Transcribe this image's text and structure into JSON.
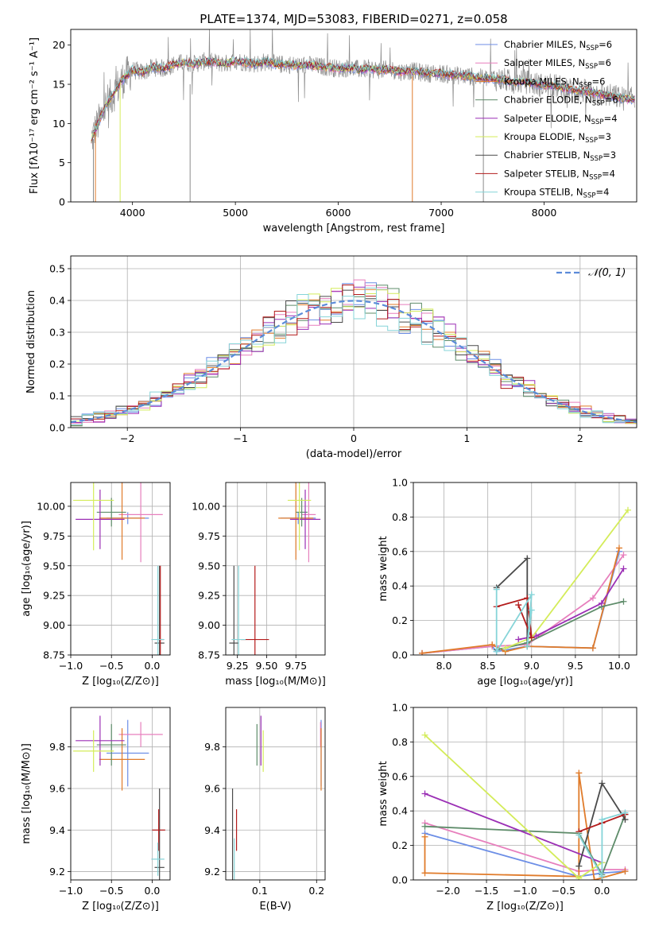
{
  "colors": {
    "Chabrier MILES": "#6c8ee6",
    "Salpeter MILES": "#e77fbd",
    "Kroupa MILES": "#e07b2a",
    "Chabrier ELODIE": "#5e8c6a",
    "Salpeter ELODIE": "#9b2fb5",
    "Kroupa ELODIE": "#d4ec5a",
    "Chabrier STELIB": "#4a4a4a",
    "Salpeter STELIB": "#b31b1b",
    "Kroupa STELIB": "#86d4d8",
    "data": "#8c8c8c",
    "normal": "#5b8bd9"
  },
  "chart_data": [
    {
      "id": "spectrum",
      "type": "line",
      "title": "PLATE=1374, MJD=53083, FIBERID=0271, z=0.058",
      "xlabel": "wavelength [Angstrom, rest frame]",
      "ylabel": "Flux [fλ10⁻¹⁷ erg cm⁻² s⁻¹ A⁻¹]",
      "xlim": [
        3400,
        8900
      ],
      "ylim": [
        0,
        22
      ],
      "xticks": [
        "4000",
        "5000",
        "6000",
        "7000",
        "8000"
      ],
      "yticks": [
        "0",
        "5",
        "10",
        "15",
        "20"
      ],
      "grid": false,
      "legend_position": "top-right",
      "continuum": {
        "x": [
          3600,
          3650,
          3700,
          3750,
          3800,
          3850,
          3900,
          3950,
          4000,
          4100,
          4200,
          4300,
          4400,
          4500,
          4600,
          4700,
          4800,
          4900,
          5000,
          5100,
          5200,
          5300,
          5400,
          5500,
          5600,
          5700,
          5800,
          5900,
          6000,
          6100,
          6200,
          6300,
          6400,
          6500,
          6600,
          6700,
          6800,
          6900,
          7000,
          7100,
          7200,
          7300,
          7400,
          7500,
          7600,
          7700,
          7800,
          7900,
          8000,
          8100,
          8200,
          8300,
          8400,
          8500,
          8600,
          8700,
          8800
        ],
        "y": [
          8.0,
          9.5,
          11.0,
          12.5,
          13.5,
          14.5,
          15.5,
          16.2,
          16.8,
          16.5,
          17.2,
          17.0,
          17.5,
          17.8,
          17.6,
          17.9,
          17.8,
          17.6,
          18.0,
          17.8,
          17.6,
          17.9,
          17.5,
          17.6,
          17.4,
          17.5,
          17.3,
          17.2,
          17.0,
          17.1,
          16.9,
          17.0,
          16.8,
          16.9,
          16.6,
          16.7,
          16.5,
          16.4,
          16.4,
          16.2,
          16.1,
          16.0,
          15.8,
          15.7,
          15.6,
          15.2,
          15.4,
          15.1,
          14.8,
          14.8,
          14.5,
          14.2,
          14.1,
          13.9,
          13.6,
          13.4,
          13.1
        ]
      },
      "series": [
        {
          "name": "Chabrier MILES, N_SSP=6",
          "nssp": "6"
        },
        {
          "name": "Salpeter MILES, N_SSP=6",
          "nssp": "6"
        },
        {
          "name": "Kroupa MILES, N_SSP=6",
          "nssp": "6"
        },
        {
          "name": "Chabrier ELODIE, N_SSP=6",
          "nssp": "6"
        },
        {
          "name": "Salpeter ELODIE, N_SSP=4",
          "nssp": "4"
        },
        {
          "name": "Kroupa ELODIE, N_SSP=3",
          "nssp": "3"
        },
        {
          "name": "Chabrier STELIB, N_SSP=3",
          "nssp": "3"
        },
        {
          "name": "Salpeter STELIB, N_SSP=4",
          "nssp": "4"
        },
        {
          "name": "Kroupa STELIB, N_SSP=4",
          "nssp": "4"
        }
      ],
      "legend_labels": [
        {
          "model": "Chabrier MILES, N",
          "sub": "SSP",
          "tail": "=6"
        },
        {
          "model": "Salpeter MILES, N",
          "sub": "SSP",
          "tail": "=6"
        },
        {
          "model": "Kroupa MILES, N",
          "sub": "SSP",
          "tail": "=6"
        },
        {
          "model": "Chabrier ELODIE, N",
          "sub": "SSP",
          "tail": "=6"
        },
        {
          "model": "Salpeter ELODIE, N",
          "sub": "SSP",
          "tail": "=4"
        },
        {
          "model": "Kroupa ELODIE, N",
          "sub": "SSP",
          "tail": "=3"
        },
        {
          "model": "Chabrier STELIB, N",
          "sub": "SSP",
          "tail": "=3"
        },
        {
          "model": "Salpeter STELIB, N",
          "sub": "SSP",
          "tail": "=4"
        },
        {
          "model": "Kroupa STELIB, N",
          "sub": "SSP",
          "tail": "=4"
        }
      ]
    },
    {
      "id": "residuals",
      "type": "line",
      "xlabel": "(data-model)/error",
      "ylabel": "Normed distribution",
      "xlim": [
        -2.5,
        2.5
      ],
      "ylim": [
        0,
        0.54
      ],
      "xticks": [
        "−2",
        "−1",
        "0",
        "1",
        "2"
      ],
      "yticks": [
        "0.0",
        "0.1",
        "0.2",
        "0.3",
        "0.4",
        "0.5"
      ],
      "grid": true,
      "legend_position": "top-right",
      "legend_label": "𝒩(0, 1)",
      "bin_width": 0.1,
      "bin_start": -2.5
    },
    {
      "id": "age-vs-Z",
      "type": "scatter",
      "xlabel": "Z [log₁₀(Z/Z⊙)]",
      "ylabel": "age  [log₁₀(age/yr)]",
      "xlim": [
        -1.0,
        0.22
      ],
      "ylim": [
        8.75,
        10.2
      ],
      "xticks": [
        "−1.0",
        "−0.5",
        "0.0"
      ],
      "yticks": [
        "8.75",
        "9.00",
        "9.25",
        "9.50",
        "9.75",
        "10.00"
      ],
      "grid": true,
      "points": [
        {
          "m": "Chabrier MILES",
          "x": -0.3,
          "xerr": 0.26,
          "y": 9.9,
          "yerr": 0.05
        },
        {
          "m": "Salpeter MILES",
          "x": -0.14,
          "xerr": 0.27,
          "y": 9.93,
          "yerr": 0.4
        },
        {
          "m": "Kroupa MILES",
          "x": -0.37,
          "xerr": 0.28,
          "y": 9.9,
          "yerr": 0.35
        },
        {
          "m": "Chabrier ELODIE",
          "x": -0.5,
          "xerr": 0.18,
          "y": 9.95,
          "yerr": 0.12
        },
        {
          "m": "Salpeter ELODIE",
          "x": -0.64,
          "xerr": 0.3,
          "y": 9.89,
          "yerr": 0.25
        },
        {
          "m": "Kroupa ELODIE",
          "x": -0.72,
          "xerr": 0.25,
          "y": 10.05,
          "yerr": 0.42
        },
        {
          "m": "Chabrier STELIB",
          "x": 0.09,
          "xerr": 0.06,
          "y": 8.85,
          "yerr": 0.65
        },
        {
          "m": "Salpeter STELIB",
          "x": 0.1,
          "xerr": 0.04,
          "y": 8.88,
          "yerr": 0.62
        },
        {
          "m": "Kroupa STELIB",
          "x": 0.07,
          "xerr": 0.08,
          "y": 8.88,
          "yerr": 0.62
        }
      ]
    },
    {
      "id": "age-vs-mass",
      "type": "scatter",
      "xlabel": "mass [log₁₀(M/M⊙)]",
      "xlim": [
        9.15,
        10.0
      ],
      "ylim": [
        8.75,
        10.2
      ],
      "xticks": [
        "9.25",
        "9.50",
        "9.75"
      ],
      "yticks": [
        "8.75",
        "9.00",
        "9.25",
        "9.50",
        "9.75",
        "10.00"
      ],
      "grid": true,
      "points": [
        {
          "m": "Chabrier MILES",
          "x": 9.77,
          "xerr": 0.15,
          "y": 9.9,
          "yerr": 0.05
        },
        {
          "m": "Salpeter MILES",
          "x": 9.86,
          "xerr": 0.06,
          "y": 9.93,
          "yerr": 0.4
        },
        {
          "m": "Kroupa MILES",
          "x": 9.75,
          "xerr": 0.15,
          "y": 9.9,
          "yerr": 0.35
        },
        {
          "m": "Chabrier ELODIE",
          "x": 9.8,
          "xerr": 0.05,
          "y": 9.95,
          "yerr": 0.12
        },
        {
          "m": "Salpeter ELODIE",
          "x": 9.83,
          "xerr": 0.13,
          "y": 9.89,
          "yerr": 0.25
        },
        {
          "m": "Kroupa ELODIE",
          "x": 9.78,
          "xerr": 0.1,
          "y": 10.05,
          "yerr": 0.42
        },
        {
          "m": "Chabrier STELIB",
          "x": 9.22,
          "xerr": 0.04,
          "y": 8.85,
          "yerr": 0.65
        },
        {
          "m": "Salpeter STELIB",
          "x": 9.4,
          "xerr": 0.12,
          "y": 8.88,
          "yerr": 0.62
        },
        {
          "m": "Kroupa STELIB",
          "x": 9.26,
          "xerr": 0.06,
          "y": 8.88,
          "yerr": 0.62
        }
      ]
    },
    {
      "id": "mass-weight-vs-age",
      "type": "line",
      "xlabel": "age  [log₁₀(age/yr)]",
      "ylabel": "mass weight",
      "xlim": [
        7.65,
        10.2
      ],
      "ylim": [
        0,
        1.0
      ],
      "xticks": [
        "8.0",
        "8.5",
        "9.0",
        "9.5",
        "10.0"
      ],
      "yticks": [
        "0.0",
        "0.2",
        "0.4",
        "0.6",
        "0.8",
        "1.0"
      ],
      "grid": true,
      "series": [
        {
          "m": "Chabrier MILES",
          "points": [
            [
              7.75,
              0.01
            ],
            [
              8.55,
              0.05
            ],
            [
              8.6,
              0.02
            ],
            [
              8.95,
              0.05
            ],
            [
              9.7,
              0.04
            ],
            [
              10.0,
              0.6
            ]
          ]
        },
        {
          "m": "Salpeter MILES",
          "points": [
            [
              7.75,
              0.01
            ],
            [
              8.55,
              0.05
            ],
            [
              8.95,
              0.06
            ],
            [
              9.7,
              0.33
            ],
            [
              10.05,
              0.58
            ]
          ]
        },
        {
          "m": "Kroupa MILES",
          "points": [
            [
              7.75,
              0.01
            ],
            [
              8.55,
              0.06
            ],
            [
              8.7,
              0.02
            ],
            [
              8.95,
              0.05
            ],
            [
              9.7,
              0.04
            ],
            [
              10.0,
              0.62
            ]
          ]
        },
        {
          "m": "Chabrier ELODIE",
          "points": [
            [
              8.6,
              0.03
            ],
            [
              8.95,
              0.07
            ],
            [
              9.8,
              0.28
            ],
            [
              10.05,
              0.31
            ]
          ]
        },
        {
          "m": "Salpeter ELODIE",
          "points": [
            [
              8.85,
              0.09
            ],
            [
              9.05,
              0.11
            ],
            [
              9.8,
              0.3
            ],
            [
              10.05,
              0.5
            ]
          ]
        },
        {
          "m": "Kroupa ELODIE",
          "points": [
            [
              8.7,
              0.04
            ],
            [
              9.0,
              0.1
            ],
            [
              10.1,
              0.84
            ]
          ]
        },
        {
          "m": "Chabrier STELIB",
          "points": [
            [
              8.6,
              0.39
            ],
            [
              8.95,
              0.56
            ],
            [
              8.95,
              0.05
            ]
          ]
        },
        {
          "m": "Salpeter STELIB",
          "points": [
            [
              8.6,
              0.28
            ],
            [
              8.95,
              0.33
            ],
            [
              9.0,
              0.1
            ],
            [
              8.85,
              0.29
            ]
          ]
        },
        {
          "m": "Kroupa STELIB",
          "points": [
            [
              8.6,
              0.38
            ],
            [
              8.6,
              0.02
            ],
            [
              9.0,
              0.35
            ],
            [
              8.95,
              0.05
            ],
            [
              9.0,
              0.26
            ]
          ]
        }
      ]
    },
    {
      "id": "mass-vs-Z",
      "type": "scatter",
      "xlabel": "Z [log₁₀(Z/Z⊙)]",
      "ylabel": "mass [log₁₀(M/M⊙)]",
      "xlim": [
        -1.0,
        0.22
      ],
      "ylim": [
        9.16,
        9.99
      ],
      "xticks": [
        "−1.0",
        "−0.5",
        "0.0"
      ],
      "yticks": [
        "9.2",
        "9.4",
        "9.6",
        "9.8"
      ],
      "grid": true,
      "points": [
        {
          "m": "Chabrier MILES",
          "x": -0.3,
          "xerr": 0.26,
          "y": 9.77,
          "yerr": 0.16
        },
        {
          "m": "Salpeter MILES",
          "x": -0.14,
          "xerr": 0.27,
          "y": 9.86,
          "yerr": 0.06
        },
        {
          "m": "Kroupa MILES",
          "x": -0.37,
          "xerr": 0.28,
          "y": 9.74,
          "yerr": 0.15
        },
        {
          "m": "Chabrier ELODIE",
          "x": -0.5,
          "xerr": 0.18,
          "y": 9.81,
          "yerr": 0.1
        },
        {
          "m": "Salpeter ELODIE",
          "x": -0.64,
          "xerr": 0.3,
          "y": 9.83,
          "yerr": 0.12
        },
        {
          "m": "Kroupa ELODIE",
          "x": -0.72,
          "xerr": 0.25,
          "y": 9.78,
          "yerr": 0.1
        },
        {
          "m": "Chabrier STELIB",
          "x": 0.09,
          "xerr": 0.06,
          "y": 9.22,
          "yerr": 0.38
        },
        {
          "m": "Salpeter STELIB",
          "x": 0.08,
          "xerr": 0.08,
          "y": 9.4,
          "yerr": 0.1
        },
        {
          "m": "Kroupa STELIB",
          "x": 0.07,
          "xerr": 0.08,
          "y": 9.26,
          "yerr": 0.08
        }
      ]
    },
    {
      "id": "mass-vs-EBV",
      "type": "scatter",
      "xlabel": "E(B-V)",
      "xlim": [
        0.04,
        0.215
      ],
      "ylim": [
        9.16,
        9.99
      ],
      "xticks": [
        "0.1",
        "0.2"
      ],
      "yticks": [
        "9.2",
        "9.4",
        "9.6",
        "9.8"
      ],
      "grid": true,
      "points": [
        {
          "m": "Chabrier MILES",
          "x": 0.208,
          "y": 9.77,
          "yerr": 0.16
        },
        {
          "m": "Salpeter MILES",
          "x": 0.207,
          "y": 9.86,
          "yerr": 0.06
        },
        {
          "m": "Kroupa MILES",
          "x": 0.208,
          "y": 9.74,
          "yerr": 0.15
        },
        {
          "m": "Chabrier ELODIE",
          "x": 0.095,
          "y": 9.81,
          "yerr": 0.1
        },
        {
          "m": "Salpeter ELODIE",
          "x": 0.102,
          "y": 9.83,
          "yerr": 0.12
        },
        {
          "m": "Kroupa ELODIE",
          "x": 0.106,
          "y": 9.78,
          "yerr": 0.1
        },
        {
          "m": "Chabrier STELIB",
          "x": 0.052,
          "y": 9.22,
          "yerr": 0.38
        },
        {
          "m": "Salpeter STELIB",
          "x": 0.059,
          "y": 9.4,
          "yerr": 0.1
        },
        {
          "m": "Kroupa STELIB",
          "x": 0.055,
          "y": 9.26,
          "yerr": 0.1
        }
      ]
    },
    {
      "id": "mass-weight-vs-Z",
      "type": "line",
      "xlabel": "Z [log₁₀(Z/Z⊙)]",
      "ylabel": "mass weight",
      "xlim": [
        -2.45,
        0.45
      ],
      "ylim": [
        0,
        1.0
      ],
      "xticks": [
        "−2.0",
        "−1.5",
        "−1.0",
        "−0.5",
        "0.0"
      ],
      "yticks": [
        "0.0",
        "0.2",
        "0.4",
        "0.6",
        "0.8",
        "1.0"
      ],
      "grid": true,
      "series": [
        {
          "m": "Chabrier MILES",
          "points": [
            [
              -2.3,
              0.27
            ],
            [
              -0.3,
              0.02
            ],
            [
              0.0,
              0.04
            ],
            [
              0.3,
              0.05
            ]
          ]
        },
        {
          "m": "Salpeter MILES",
          "points": [
            [
              -2.3,
              0.33
            ],
            [
              -0.3,
              0.05
            ],
            [
              0.0,
              0.06
            ],
            [
              0.3,
              0.06
            ]
          ]
        },
        {
          "m": "Kroupa MILES",
          "points": [
            [
              -2.3,
              0.25
            ],
            [
              -2.3,
              0.04
            ],
            [
              -0.3,
              0.02
            ],
            [
              -0.3,
              0.62
            ],
            [
              -0.1,
              0.0
            ],
            [
              0.3,
              0.05
            ]
          ]
        },
        {
          "m": "Chabrier ELODIE",
          "points": [
            [
              -2.3,
              0.31
            ],
            [
              -0.3,
              0.27
            ],
            [
              0.0,
              0.03
            ],
            [
              0.3,
              0.38
            ]
          ]
        },
        {
          "m": "Salpeter ELODIE",
          "points": [
            [
              -2.3,
              0.5
            ],
            [
              0.0,
              0.1
            ]
          ]
        },
        {
          "m": "Kroupa ELODIE",
          "points": [
            [
              -2.3,
              0.84
            ],
            [
              -0.3,
              0.01
            ],
            [
              0.0,
              0.1
            ]
          ]
        },
        {
          "m": "Chabrier STELIB",
          "points": [
            [
              -0.3,
              0.08
            ],
            [
              0.0,
              0.56
            ],
            [
              0.3,
              0.35
            ]
          ]
        },
        {
          "m": "Salpeter STELIB",
          "points": [
            [
              -0.3,
              0.28
            ],
            [
              0.0,
              0.33
            ],
            [
              0.3,
              0.38
            ]
          ]
        },
        {
          "m": "Kroupa STELIB",
          "points": [
            [
              -0.3,
              0.26
            ],
            [
              0.0,
              0.02
            ],
            [
              0.0,
              0.35
            ],
            [
              0.3,
              0.39
            ]
          ]
        }
      ]
    }
  ]
}
